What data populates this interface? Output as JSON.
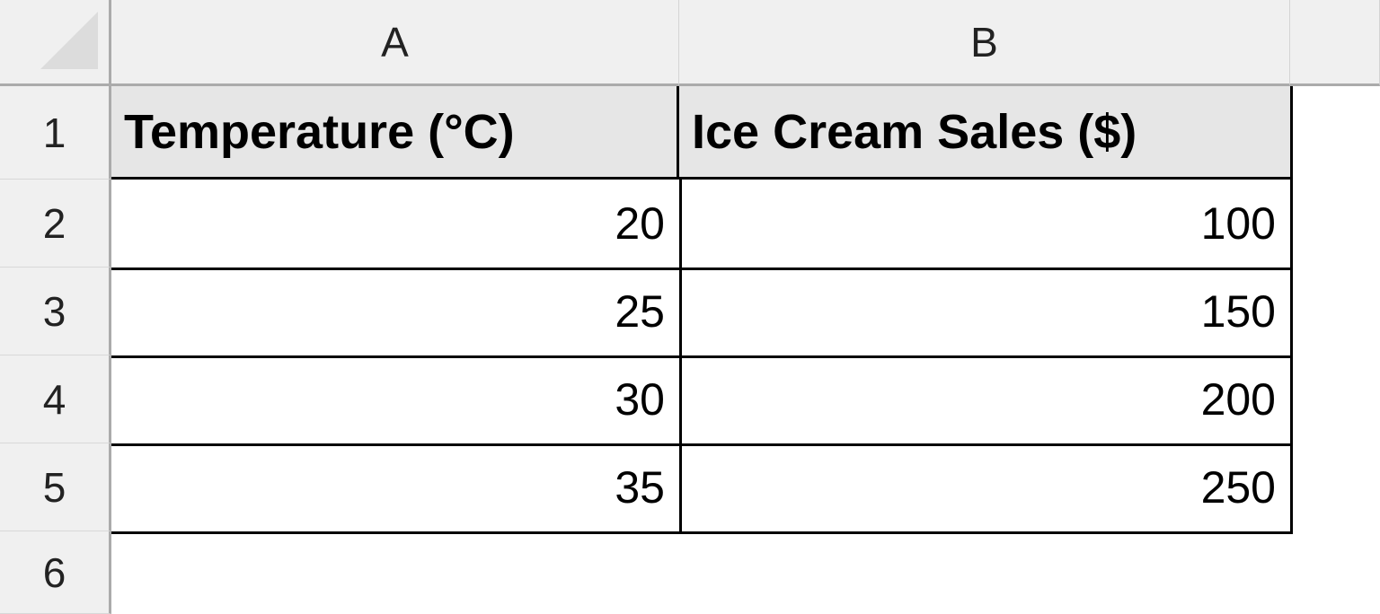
{
  "columns": [
    "A",
    "B"
  ],
  "rows": [
    "1",
    "2",
    "3",
    "4",
    "5",
    "6"
  ],
  "headers": [
    "Temperature (°C)",
    "Ice Cream Sales ($)"
  ],
  "data": [
    [
      "20",
      "100"
    ],
    [
      "25",
      "150"
    ],
    [
      "30",
      "200"
    ],
    [
      "35",
      "250"
    ]
  ],
  "colors": {
    "header_bg": "#f0f0f0",
    "header_row_fill": "#e6e6e6",
    "border": "#000000"
  }
}
